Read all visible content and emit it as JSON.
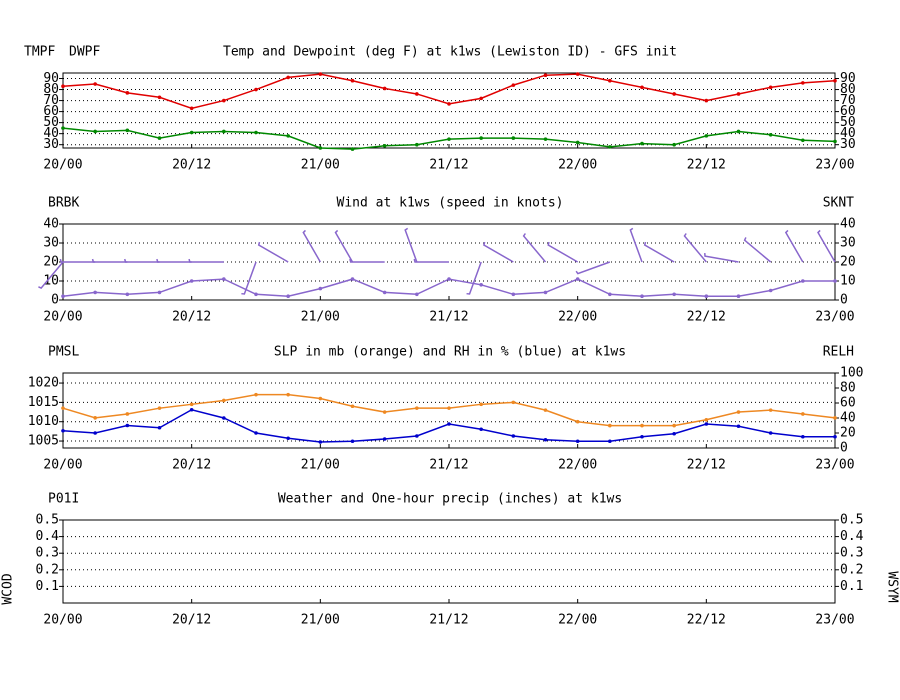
{
  "chart_data": [
    {
      "type": "line",
      "title": "Temp and Dewpoint (deg F) at k1ws  (Lewiston ID) - GFS init",
      "x": [
        0,
        3,
        6,
        9,
        12,
        15,
        18,
        21,
        24,
        27,
        30,
        33,
        36,
        39,
        42,
        45,
        48,
        51,
        54,
        57,
        60,
        63,
        66,
        69,
        72
      ],
      "xlim": [
        0,
        72
      ],
      "xticks": [
        {
          "value": 0,
          "label": "20/00"
        },
        {
          "value": 12,
          "label": "20/12"
        },
        {
          "value": 24,
          "label": "21/00"
        },
        {
          "value": 36,
          "label": "21/12"
        },
        {
          "value": 48,
          "label": "22/00"
        },
        {
          "value": 60,
          "label": "22/12"
        },
        {
          "value": 72,
          "label": "23/00"
        }
      ],
      "ylim": [
        27,
        95
      ],
      "yticks": [
        30,
        40,
        50,
        60,
        70,
        80,
        90
      ],
      "grid": true,
      "series": [
        {
          "name": "TMPF",
          "color": "#e00000",
          "values": [
            83,
            85,
            77,
            73,
            63,
            70,
            80,
            91,
            94,
            88,
            81,
            76,
            67,
            72,
            84,
            93,
            94,
            88,
            82,
            76,
            70,
            76,
            82,
            86,
            88
          ]
        },
        {
          "name": "DWPF",
          "color": "#008800",
          "values": [
            45,
            42,
            43,
            36,
            41,
            42,
            41,
            38,
            27,
            26,
            29,
            30,
            35,
            36,
            36,
            35,
            32,
            28,
            31,
            30,
            38,
            42,
            39,
            34,
            33
          ]
        }
      ]
    },
    {
      "type": "wind",
      "title": "Wind at  k1ws  (speed in knots)",
      "x": [
        0,
        3,
        6,
        9,
        12,
        15,
        18,
        21,
        24,
        27,
        30,
        33,
        36,
        39,
        42,
        45,
        48,
        51,
        54,
        57,
        60,
        63,
        66,
        69,
        72
      ],
      "xlim": [
        0,
        72
      ],
      "xticks": [
        {
          "value": 0,
          "label": "20/00"
        },
        {
          "value": 12,
          "label": "20/12"
        },
        {
          "value": 24,
          "label": "21/00"
        },
        {
          "value": 36,
          "label": "21/12"
        },
        {
          "value": 48,
          "label": "22/00"
        },
        {
          "value": 60,
          "label": "22/12"
        },
        {
          "value": 72,
          "label": "23/00"
        }
      ],
      "ylim": [
        0,
        40
      ],
      "yticks": [
        0,
        10,
        20,
        30,
        40
      ],
      "grid": true,
      "barbs": {
        "name": "BRBK",
        "color": "#8866cc",
        "level": 20,
        "directions": [
          220,
          270,
          270,
          270,
          270,
          270,
          200,
          300,
          330,
          330,
          270,
          340,
          270,
          200,
          300,
          320,
          300,
          250,
          340,
          300,
          320,
          280,
          310,
          330,
          330
        ]
      },
      "series": [
        {
          "name": "SKNT",
          "color": "#8866cc",
          "values": [
            2,
            4,
            3,
            4,
            10,
            11,
            3,
            2,
            6,
            11,
            4,
            3,
            11,
            8,
            3,
            4,
            11,
            3,
            2,
            3,
            2,
            2,
            5,
            10,
            10
          ]
        }
      ]
    },
    {
      "type": "line",
      "title": "SLP in mb (orange) and RH in % (blue) at  k1ws",
      "x": [
        0,
        3,
        6,
        9,
        12,
        15,
        18,
        21,
        24,
        27,
        30,
        33,
        36,
        39,
        42,
        45,
        48,
        51,
        54,
        57,
        60,
        63,
        66,
        69,
        72
      ],
      "xlim": [
        0,
        72
      ],
      "xticks": [
        {
          "value": 0,
          "label": "20/00"
        },
        {
          "value": 12,
          "label": "20/12"
        },
        {
          "value": 24,
          "label": "21/00"
        },
        {
          "value": 36,
          "label": "21/12"
        },
        {
          "value": 48,
          "label": "22/00"
        },
        {
          "value": 60,
          "label": "22/12"
        },
        {
          "value": 72,
          "label": "23/00"
        }
      ],
      "ylim": [
        1003.2,
        1022.6
      ],
      "yticks": [
        1005,
        1010,
        1015,
        1020
      ],
      "y2lim": [
        0,
        100
      ],
      "y2ticks": [
        0,
        20,
        40,
        60,
        80,
        100
      ],
      "grid": true,
      "series": [
        {
          "name": "PMSL",
          "color": "#ee8822",
          "values": [
            1013.5,
            1011,
            1012,
            1013.5,
            1014.5,
            1015.5,
            1017,
            1017,
            1016,
            1014,
            1012.5,
            1013.5,
            1013.5,
            1014.5,
            1015,
            1013,
            1010,
            1009,
            1009,
            1009,
            1010.5,
            1012.5,
            1013,
            1012,
            1011
          ]
        },
        {
          "name": "RELH",
          "color": "#0000cc",
          "axis": "y2",
          "values": [
            23,
            20,
            30,
            27,
            51,
            40,
            20,
            13,
            8,
            9,
            12,
            16,
            32,
            25,
            16,
            11,
            9,
            9,
            15,
            19,
            32,
            29,
            20,
            15,
            15
          ]
        }
      ]
    },
    {
      "type": "empty",
      "title": "Weather and One-hour precip (inches) at  k1ws",
      "xlim": [
        0,
        72
      ],
      "xticks": [
        {
          "value": 0,
          "label": "20/00"
        },
        {
          "value": 12,
          "label": "20/12"
        },
        {
          "value": 24,
          "label": "21/00"
        },
        {
          "value": 36,
          "label": "21/12"
        },
        {
          "value": 48,
          "label": "22/00"
        },
        {
          "value": 60,
          "label": "22/12"
        },
        {
          "value": 72,
          "label": "23/00"
        }
      ],
      "ylim": [
        0,
        0.5
      ],
      "yticks": [
        0.1,
        0.2,
        0.3,
        0.4,
        0.5
      ],
      "grid": true,
      "left_label": "P01I",
      "left_label_color": "#008800",
      "side_left": "WCOD",
      "side_left_color": "#0055aa",
      "side_right": "WSYM",
      "side_right_color": "#000000"
    }
  ]
}
